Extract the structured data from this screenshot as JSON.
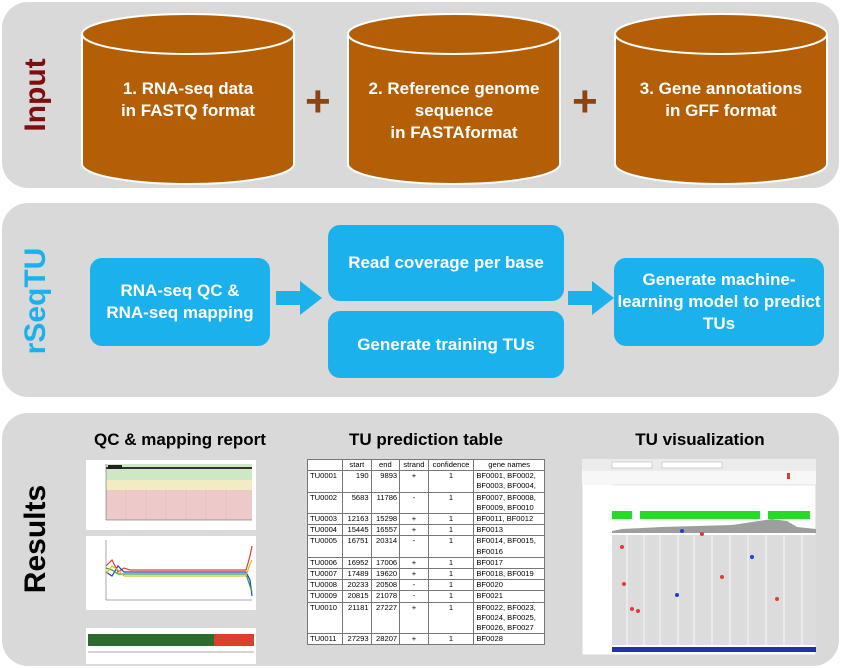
{
  "sections": {
    "input": "Input",
    "rseqtu": "rSeqTU",
    "results": "Results"
  },
  "inputs": [
    {
      "lines": [
        "1. RNA-seq data",
        "in FASTQ format"
      ]
    },
    {
      "lines": [
        "2. Reference genome",
        "sequence",
        "in FASTAformat"
      ]
    },
    {
      "lines": [
        "3. Gene annotations",
        "in GFF format"
      ]
    }
  ],
  "plus": "+",
  "steps": {
    "qc": [
      "RNA-seq QC &",
      "RNA-seq mapping"
    ],
    "coverage": "Read coverage per base",
    "training": "Generate training TUs",
    "ml": [
      "Generate machine-",
      "learning model to predict",
      "TUs"
    ]
  },
  "results": {
    "qc_title": "QC & mapping report",
    "table_title": "TU prediction table",
    "viz_title": "TU visualization"
  },
  "tu_table": {
    "headers": [
      "",
      "start",
      "end",
      "strand",
      "confidence",
      "gene names"
    ],
    "rows": [
      {
        "id": "TU0001",
        "start": "190",
        "end": "9893",
        "strand": "+",
        "conf": "1",
        "genes": [
          "BF0001, BF0002,",
          "BF0003, BF0004,"
        ]
      },
      {
        "id": "TU0002",
        "start": "5683",
        "end": "11786",
        "strand": "-",
        "conf": "1",
        "genes": [
          "BF0007, BF0008,",
          "BF0009, BF0010"
        ]
      },
      {
        "id": "TU0003",
        "start": "12163",
        "end": "15298",
        "strand": "+",
        "conf": "1",
        "genes": [
          "BF0011, BF0012"
        ]
      },
      {
        "id": "TU0004",
        "start": "15445",
        "end": "16557",
        "strand": "+",
        "conf": "1",
        "genes": [
          "BF0013"
        ]
      },
      {
        "id": "TU0005",
        "start": "16751",
        "end": "20314",
        "strand": "-",
        "conf": "1",
        "genes": [
          "BF0014, BF0015,",
          "BF0016"
        ]
      },
      {
        "id": "TU0006",
        "start": "16952",
        "end": "17006",
        "strand": "+",
        "conf": "1",
        "genes": [
          "BF0017"
        ]
      },
      {
        "id": "TU0007",
        "start": "17489",
        "end": "19620",
        "strand": "+",
        "conf": "1",
        "genes": [
          "BF0018, BF0019"
        ]
      },
      {
        "id": "TU0008",
        "start": "20233",
        "end": "20508",
        "strand": "-",
        "conf": "1",
        "genes": [
          "BF0020"
        ]
      },
      {
        "id": "TU0009",
        "start": "20815",
        "end": "21078",
        "strand": "-",
        "conf": "1",
        "genes": [
          "BF0021"
        ]
      },
      {
        "id": "TU0010",
        "start": "21181",
        "end": "27227",
        "strand": "+",
        "conf": "1",
        "genes": [
          "BF0022, BF0023,",
          "BF0024, BF0025,",
          "BF0026, BF0027"
        ]
      },
      {
        "id": "TU0011",
        "start": "27293",
        "end": "28207",
        "strand": "+",
        "conf": "1",
        "genes": [
          "BF0028"
        ]
      }
    ]
  },
  "colors": {
    "panel": "#d9d9d9",
    "cylinder": "#b45f06",
    "plus": "#8b4513",
    "step_box": "#1ab1ec",
    "input_label": "#7b1010",
    "rseqtu_label": "#1ab1ec",
    "results_label": "#000000"
  }
}
